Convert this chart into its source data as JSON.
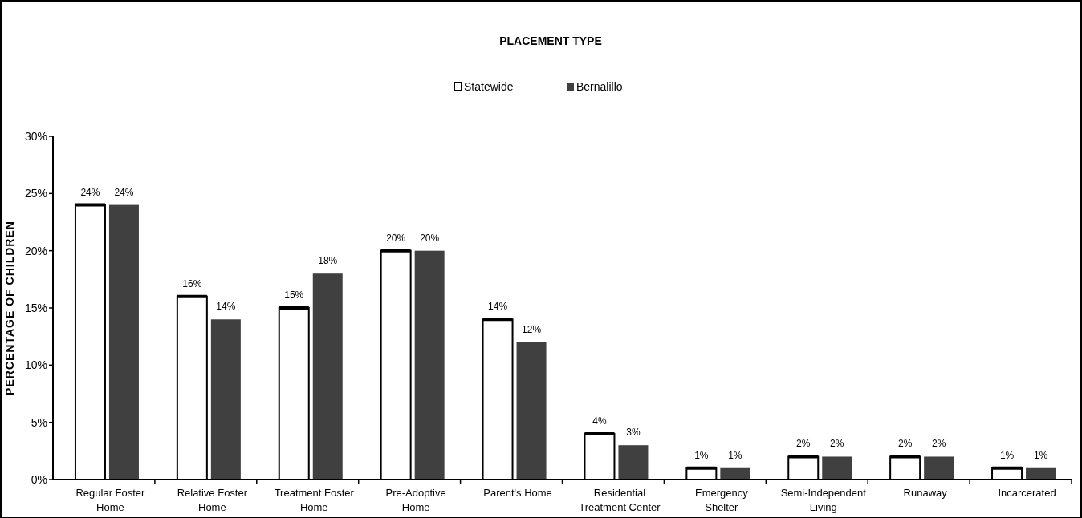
{
  "chart_data": {
    "type": "bar",
    "title": "PLACEMENT TYPE",
    "ylabel": "PERCENTAGE OF CHILDREN",
    "categories": [
      "Regular Foster Home",
      "Relative Foster Home",
      "Treatment Foster Home",
      "Pre-Adoptive Home",
      "Parent's Home",
      "Residential Treatment Center",
      "Emergency Shelter",
      "Semi-Independent Living",
      "Runaway",
      "Incarcerated"
    ],
    "series": [
      {
        "name": "Statewide",
        "color": "#ffffff",
        "values": [
          24,
          16,
          15,
          20,
          14,
          4,
          1,
          2,
          2,
          1
        ],
        "value_labels": [
          "24%",
          "16%",
          "15%",
          "20%",
          "14%",
          "4%",
          "1%",
          "2%",
          "2%",
          "1%"
        ]
      },
      {
        "name": "Bernalillo",
        "color": "#404040",
        "values": [
          24,
          14,
          18,
          20,
          12,
          3,
          1,
          2,
          2,
          1
        ],
        "value_labels": [
          "24%",
          "14%",
          "18%",
          "20%",
          "12%",
          "3%",
          "1%",
          "2%",
          "2%",
          "1%"
        ]
      }
    ],
    "ylim": [
      0,
      30
    ],
    "yticks": [
      {
        "value": 0,
        "label": "0%"
      },
      {
        "value": 5,
        "label": "5%"
      },
      {
        "value": 10,
        "label": "10%"
      },
      {
        "value": 15,
        "label": "15%"
      },
      {
        "value": 20,
        "label": "20%"
      },
      {
        "value": 25,
        "label": "25%"
      },
      {
        "value": 30,
        "label": "30%"
      }
    ],
    "legend": "top",
    "grid": false
  }
}
